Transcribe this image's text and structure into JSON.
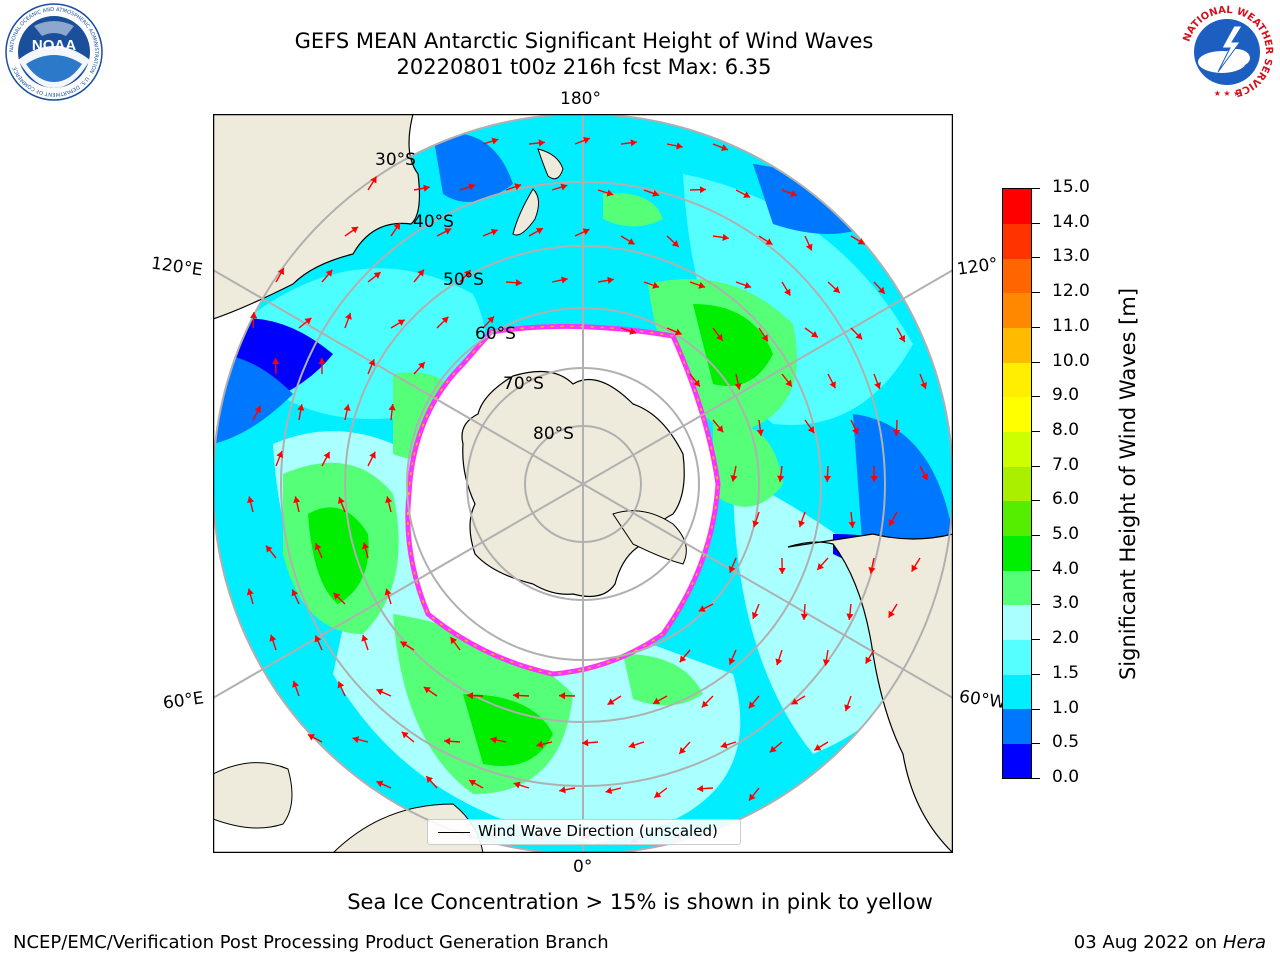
{
  "title": {
    "line1": "GEFS MEAN Antarctic Significant Height of Wind Waves",
    "line2": "20220801 t00z 216h fcst   Max: 6.35"
  },
  "logos": {
    "left": {
      "text": "NOAA",
      "ring_text": "NATIONAL OCEANIC AND ATMOSPHERIC ADMINISTRATION · U.S. DEPARTMENT OF COMMERCE",
      "color": "#1a4f9c"
    },
    "right": {
      "ring_text": "NATIONAL WEATHER SERVICE",
      "color": "#d4121e"
    }
  },
  "map": {
    "projection": "south-polar-stereographic",
    "longitude_labels": [
      "180°",
      "120°E",
      "120°",
      "60°E",
      "60°W",
      "0°"
    ],
    "latitude_labels": [
      "30°S",
      "40°S",
      "50°S",
      "60°S",
      "70°S",
      "80°S"
    ],
    "legend": "Wind Wave Direction (unscaled)",
    "colors": {
      "land": "#efebdc",
      "ice": "#ffffff",
      "ice_edge": "#ff33ff",
      "arrow": "#ff0000",
      "grid": "#b0b0b0"
    }
  },
  "colorbar": {
    "label": "Significant Height of Wind Waves [m]",
    "ticks": [
      "0.0",
      "0.5",
      "1.0",
      "1.5",
      "2.0",
      "3.0",
      "4.0",
      "5.0",
      "6.0",
      "7.0",
      "8.0",
      "9.0",
      "10.0",
      "11.0",
      "12.0",
      "13.0",
      "14.0",
      "15.0"
    ],
    "colors": [
      "#0000ff",
      "#0077ff",
      "#00eeff",
      "#55ffff",
      "#aaffff",
      "#55ff77",
      "#00ee00",
      "#55ee00",
      "#aaee00",
      "#ccff00",
      "#ffff00",
      "#ffee00",
      "#ffbb00",
      "#ff8800",
      "#ff6600",
      "#ff3300",
      "#ff0000"
    ]
  },
  "notes": {
    "sea_ice": "Sea Ice Concentration > 15% is shown in pink to yellow"
  },
  "footer": {
    "left": "NCEP/EMC/Verification Post Processing Product Generation Branch",
    "right_date": "03 Aug 2022 on",
    "right_host": "Hera"
  }
}
